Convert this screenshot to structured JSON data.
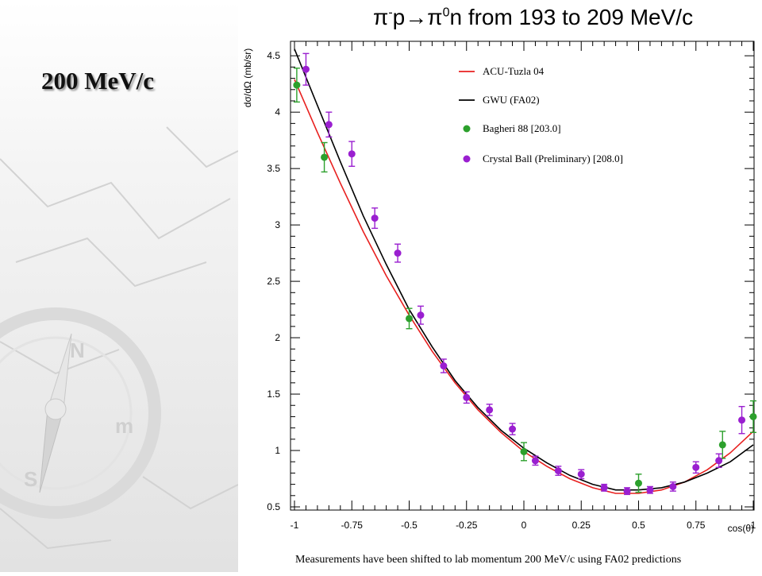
{
  "slide": {
    "title": "200 MeV/c"
  },
  "chart_data": {
    "type": "scatter",
    "title_parts": {
      "pi": "π",
      "minus": "-",
      "p": "p",
      "arrow": "→",
      "pi2": "π",
      "zero": "0",
      "rest": "n from 193 to 209 MeV/c"
    },
    "xlabel": "cos(θ)",
    "ylabel": "dσ/dΩ (mb/sr)",
    "xlim": [
      -1,
      1
    ],
    "ylim": [
      0.5,
      4.6
    ],
    "x_ticks": [
      "-1",
      "-0.75",
      "-0.5",
      "-0.25",
      "0",
      "0.25",
      "0.5",
      "0.75",
      "1"
    ],
    "y_ticks": [
      "0.5",
      "1",
      "1.5",
      "2",
      "2.5",
      "3",
      "3.5",
      "4",
      "4.5"
    ],
    "footnote": "Measurements have been shifted to lab momentum 200 MeV/c using FA02 predictions",
    "legend_position": "top-right",
    "series": [
      {
        "name": "ACU-Tuzla 04",
        "kind": "line",
        "color": "#e8201f",
        "x": [
          -1,
          -0.9,
          -0.8,
          -0.7,
          -0.6,
          -0.5,
          -0.4,
          -0.3,
          -0.2,
          -0.1,
          0,
          0.1,
          0.2,
          0.3,
          0.4,
          0.5,
          0.6,
          0.7,
          0.8,
          0.9,
          1
        ],
        "y": [
          4.29,
          3.82,
          3.37,
          2.94,
          2.55,
          2.2,
          1.88,
          1.6,
          1.36,
          1.16,
          0.99,
          0.86,
          0.75,
          0.67,
          0.62,
          0.62,
          0.65,
          0.72,
          0.83,
          0.98,
          1.17
        ]
      },
      {
        "name": "GWU (FA02)",
        "kind": "line",
        "color": "#000000",
        "x": [
          -1,
          -0.9,
          -0.8,
          -0.7,
          -0.6,
          -0.5,
          -0.4,
          -0.3,
          -0.2,
          -0.1,
          0,
          0.1,
          0.2,
          0.3,
          0.4,
          0.5,
          0.6,
          0.7,
          0.8,
          0.9,
          1
        ],
        "y": [
          4.56,
          4.06,
          3.56,
          3.08,
          2.65,
          2.25,
          1.92,
          1.62,
          1.38,
          1.18,
          1.02,
          0.89,
          0.78,
          0.7,
          0.65,
          0.65,
          0.67,
          0.72,
          0.8,
          0.9,
          1.05
        ]
      },
      {
        "name": "Bagheri 88  [203.0]",
        "kind": "points",
        "color": "#2ca02c",
        "x": [
          -0.99,
          -0.87,
          -0.5,
          0,
          0.5,
          0.866,
          1
        ],
        "y": [
          4.24,
          3.6,
          2.17,
          0.99,
          0.71,
          1.05,
          1.3
        ],
        "err": [
          0.15,
          0.13,
          0.09,
          0.08,
          0.08,
          0.12,
          0.14
        ]
      },
      {
        "name": "Crystal Ball (Preliminary)  [208.0]",
        "kind": "points",
        "color": "#9a1fd0",
        "x": [
          -0.95,
          -0.85,
          -0.75,
          -0.65,
          -0.55,
          -0.45,
          -0.35,
          -0.25,
          -0.15,
          -0.05,
          0.05,
          0.15,
          0.25,
          0.35,
          0.45,
          0.55,
          0.65,
          0.75,
          0.85,
          0.95
        ],
        "y": [
          4.38,
          3.89,
          3.63,
          3.06,
          2.75,
          2.2,
          1.75,
          1.47,
          1.36,
          1.19,
          0.91,
          0.82,
          0.79,
          0.67,
          0.64,
          0.65,
          0.68,
          0.85,
          0.91,
          1.27
        ],
        "err": [
          0.14,
          0.11,
          0.11,
          0.09,
          0.08,
          0.08,
          0.06,
          0.05,
          0.05,
          0.05,
          0.04,
          0.04,
          0.04,
          0.03,
          0.03,
          0.03,
          0.04,
          0.05,
          0.06,
          0.12
        ]
      }
    ]
  }
}
